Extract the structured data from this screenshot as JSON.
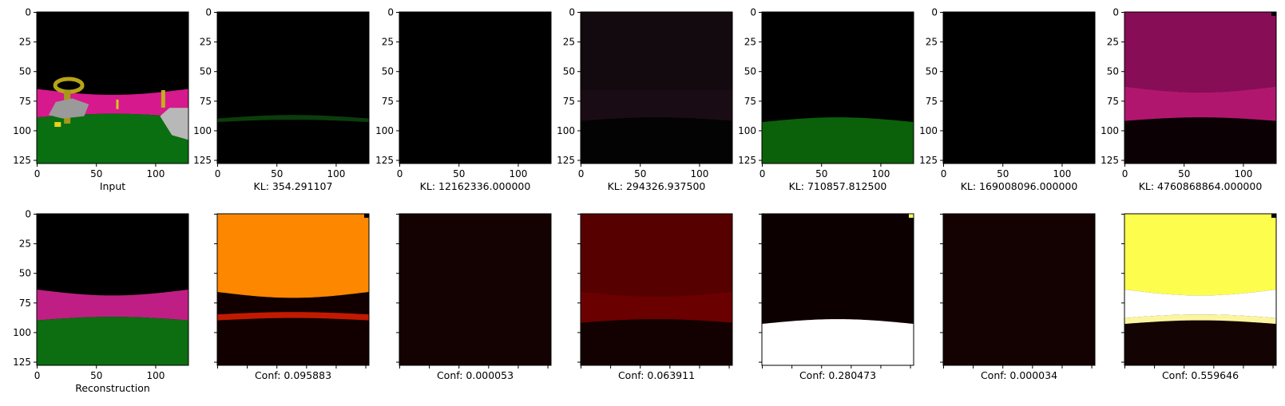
{
  "figure": {
    "x_ticks": [
      "0",
      "50",
      "100"
    ],
    "y_ticks": [
      "0",
      "25",
      "50",
      "75",
      "100",
      "125"
    ],
    "top_row": [
      {
        "caption": "Input",
        "kind": "input",
        "show_y_labels": true
      },
      {
        "caption": "KL: 354.291107",
        "kind": "latent_green_line",
        "show_y_labels": true
      },
      {
        "caption": "KL: 12162336.000000",
        "kind": "black",
        "show_y_labels": true
      },
      {
        "caption": "KL: 294326.937500",
        "kind": "latent_dim_sky",
        "show_y_labels": true
      },
      {
        "caption": "KL: 710857.812500",
        "kind": "latent_green_ground",
        "show_y_labels": true
      },
      {
        "caption": "KL: 169008096.000000",
        "kind": "black",
        "show_y_labels": true
      },
      {
        "caption": "KL: 4760868864.000000",
        "kind": "latent_magenta_sky",
        "show_y_labels": true
      }
    ],
    "bottom_row": [
      {
        "caption": "Reconstruction",
        "kind": "reconstruction",
        "show_y_labels": true
      },
      {
        "caption": "Conf: 0.095883",
        "kind": "conf_orange",
        "show_y_labels": false
      },
      {
        "caption": "Conf: 0.000053",
        "kind": "conf_dark",
        "show_y_labels": false
      },
      {
        "caption": "Conf: 0.063911",
        "kind": "conf_red",
        "show_y_labels": false
      },
      {
        "caption": "Conf: 0.280473",
        "kind": "conf_white_ground",
        "show_y_labels": false
      },
      {
        "caption": "Conf: 0.000034",
        "kind": "conf_dark",
        "show_y_labels": false
      },
      {
        "caption": "Conf: 0.559646",
        "kind": "conf_yellow",
        "show_y_labels": false
      }
    ]
  },
  "chart_data": {
    "type": "heatmap",
    "image_size": [
      128,
      128
    ],
    "x_range": [
      0,
      127
    ],
    "y_range": [
      127,
      0
    ],
    "captions_top": [
      "Input",
      "KL: 354.291107",
      "KL: 12162336.000000",
      "KL: 294326.937500",
      "KL: 710857.812500",
      "KL: 169008096.000000",
      "KL: 4760868864.000000"
    ],
    "captions_bottom": [
      "Reconstruction",
      "Conf: 0.095883",
      "Conf: 0.000053",
      "Conf: 0.063911",
      "Conf: 0.280473",
      "Conf: 0.000034",
      "Conf: 0.559646"
    ],
    "kl_values": [
      354.291107,
      12162336.0,
      294326.9375,
      710857.8125,
      169008096.0,
      4760868864.0
    ],
    "conf_values": [
      0.095883,
      5.3e-05,
      0.063911,
      0.280473,
      3.4e-05,
      0.559646
    ]
  }
}
